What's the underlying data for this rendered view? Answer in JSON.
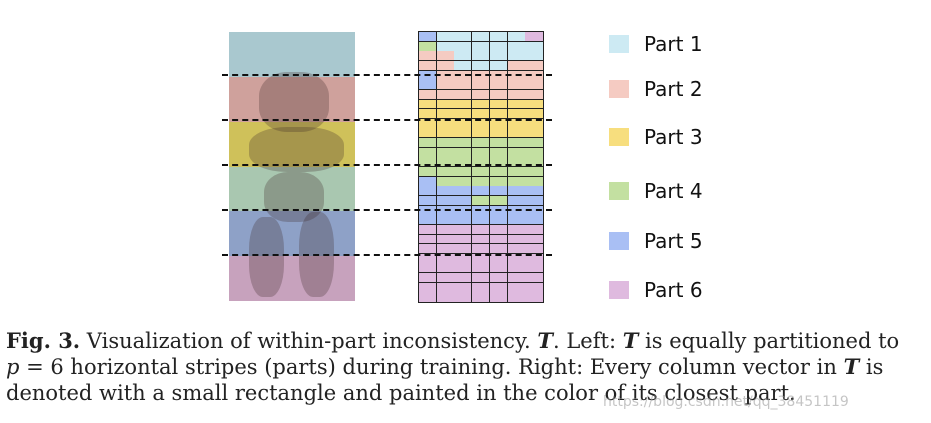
{
  "colors": {
    "part1": "#cdeaf3",
    "part2": "#f5cbc2",
    "part3": "#f7de7e",
    "part4": "#c3e0a1",
    "part5": "#a9bff4",
    "part6": "#dfbadf"
  },
  "image_stripes": [
    "#a9c8cf",
    "#cfa19c",
    "#cfc15a",
    "#a9c7b0",
    "#8ea1c7",
    "#c7a2bd"
  ],
  "legend": [
    {
      "label": "Part 1",
      "color_key": "part1"
    },
    {
      "label": "Part 2",
      "color_key": "part2"
    },
    {
      "label": "Part 3",
      "color_key": "part3"
    },
    {
      "label": "Part 4",
      "color_key": "part4"
    },
    {
      "label": "Part 5",
      "color_key": "part5"
    },
    {
      "label": "Part 6",
      "color_key": "part6"
    }
  ],
  "grid_rows": [
    "5111116",
    "4111111",
    "2211111",
    "2211122",
    "5222222",
    "5222222",
    "2222222",
    "3333333",
    "3333333",
    "3333333",
    "3333333",
    "4444444",
    "4444444",
    "4444444",
    "4444444",
    "5444444",
    "5555555",
    "5554455",
    "5555555",
    "5555555",
    "6666666",
    "6666666",
    "6666666",
    "6666666",
    "6666666",
    "6666666",
    "6666666",
    "6666666"
  ],
  "caption": {
    "fig_label": "Fig. 3.",
    "part_a": " Visualization of within-part inconsistency. ",
    "sym1": "T",
    "part_b": ". Left: ",
    "sym2": "T",
    "part_c": " is equally partitioned to",
    "var_p": "p",
    "part_d": " = 6 horizontal stripes (parts) during training. Right: Every column vector in ",
    "sym3": "T",
    "part_e": " is",
    "line3": "denoted with a small rectangle and painted in the color of its closest part."
  },
  "watermark": "https://blog.csdn.net/qq_38451119"
}
